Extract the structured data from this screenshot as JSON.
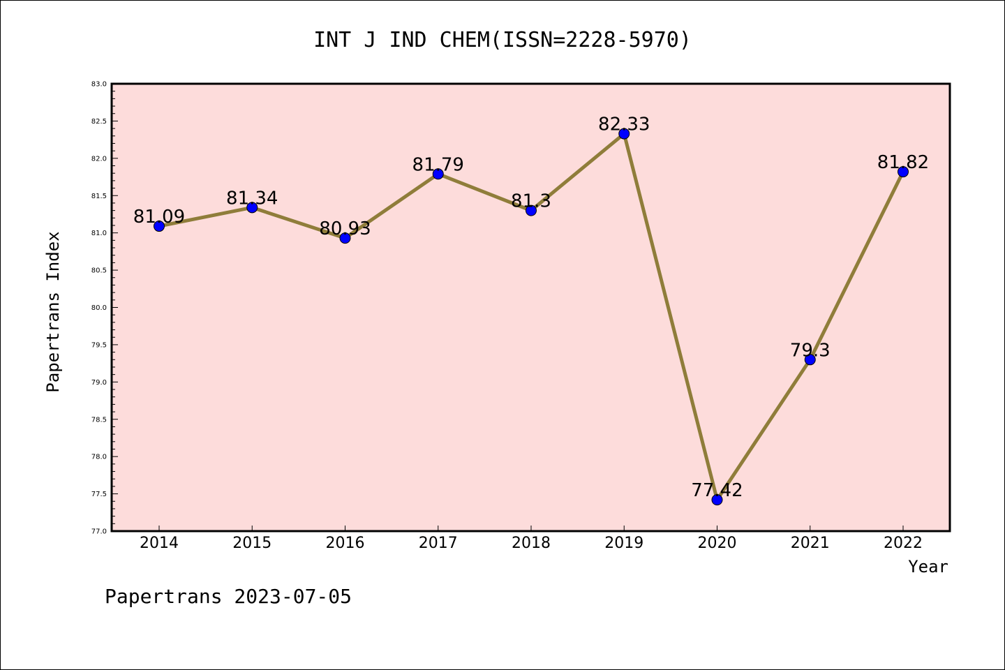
{
  "chart_data": {
    "type": "line",
    "title": "INT J IND CHEM(ISSN=2228-5970)",
    "xlabel": "Year",
    "ylabel": "Papertrans Index",
    "categories": [
      "2014",
      "2015",
      "2016",
      "2017",
      "2018",
      "2019",
      "2020",
      "2021",
      "2022"
    ],
    "values": [
      81.09,
      81.34,
      80.93,
      81.79,
      81.3,
      82.33,
      77.42,
      79.3,
      81.82
    ],
    "data_labels": [
      "81.09",
      "81.34",
      "80.93",
      "81.79",
      "81.3",
      "82.33",
      "77.42",
      "79.3",
      "81.82"
    ],
    "ylim": [
      77.0,
      83.0
    ],
    "yticks": [
      "77.0",
      "77.5",
      "78.0",
      "78.5",
      "79.0",
      "79.5",
      "80.0",
      "80.5",
      "81.0",
      "81.5",
      "82.0",
      "82.5",
      "83.0"
    ],
    "grid": false,
    "legend": "none",
    "colors": {
      "plot_background": "#fddcdb",
      "line": "#8f7d3a",
      "marker": "#0000ff"
    }
  },
  "footer": "Papertrans 2023-07-05"
}
